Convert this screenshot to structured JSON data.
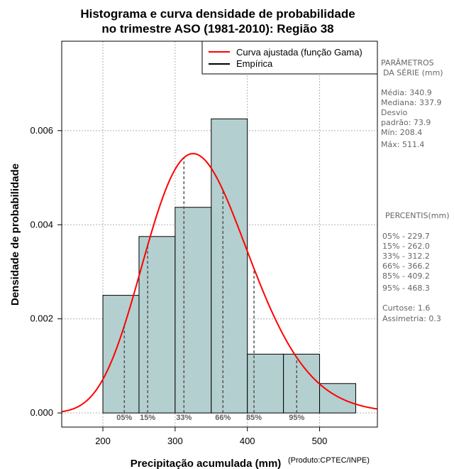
{
  "chart_data": {
    "type": "histogram",
    "title_line1": "Histograma e curva densidade de probabilidade",
    "title_line2": "no trimestre ASO (1981-2010): Região 38",
    "xlabel": "Precipitação acumulada (mm)",
    "ylabel": "Densidade de probabilidade",
    "credit": "(Produto:CPTEC/INPE)",
    "xlim": [
      143,
      580
    ],
    "ylim": [
      -0.0003,
      0.0079
    ],
    "x_ticks": [
      200,
      300,
      400,
      500
    ],
    "y_ticks": [
      0.0,
      0.002,
      0.004,
      0.006
    ],
    "x_tick_labels": [
      "200",
      "300",
      "400",
      "500"
    ],
    "y_tick_labels": [
      "0.000",
      "0.002",
      "0.004",
      "0.006"
    ],
    "grid": true,
    "bins": [
      {
        "start": 200,
        "end": 250,
        "density": 0.0025
      },
      {
        "start": 250,
        "end": 300,
        "density": 0.00375
      },
      {
        "start": 300,
        "end": 350,
        "density": 0.00437
      },
      {
        "start": 350,
        "end": 400,
        "density": 0.00625
      },
      {
        "start": 400,
        "end": 450,
        "density": 0.00125
      },
      {
        "start": 450,
        "end": 500,
        "density": 0.00125
      },
      {
        "start": 500,
        "end": 550,
        "density": 0.000625
      }
    ],
    "gamma_fit": {
      "shape": 21.3,
      "scale": 16.0
    },
    "legend": [
      {
        "label": "Curva ajustada (função Gama)",
        "color": "#ff0000"
      },
      {
        "label": "Empírica",
        "color": "#000000"
      }
    ],
    "percentile_markers": [
      {
        "label": "05%",
        "value": 229.7
      },
      {
        "label": "15%",
        "value": 262.0
      },
      {
        "label": "33%",
        "value": 312.2
      },
      {
        "label": "66%",
        "value": 366.2
      },
      {
        "label": "85%",
        "value": 409.2
      },
      {
        "label": "95%",
        "value": 468.3
      }
    ],
    "colors": {
      "bar_fill": "#b4cfcf",
      "curve": "#ff0000",
      "grid": "#b0b0b0",
      "marker_line": "#555555"
    }
  },
  "side_panel": {
    "params_title_1": "PARÂMETROS",
    "params_title_2": "DA SÉRIE (mm)",
    "params": [
      "Média:  340.9",
      "Mediana:  337.9",
      "Desvio",
      "padrão:  73.9",
      "Mín:  208.4",
      "Máx:  511.4"
    ],
    "percentis_title": "PERCENTIS(mm)",
    "percentis": [
      "05% -  229.7",
      "15% -  262.0",
      "33% -  312.2",
      "66% -  366.2",
      "85% -  409.2",
      "95% -  468.3"
    ],
    "curtose": "Curtose:  1.6",
    "assimetria": "Assimetria:  0.3"
  }
}
